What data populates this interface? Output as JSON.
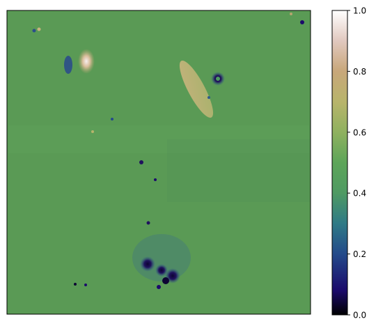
{
  "colorbar": {
    "colormap": "gist_earth",
    "min": 0.0,
    "max": 1.0,
    "ticks": [
      "0.0",
      "0.2",
      "0.4",
      "0.6",
      "0.8",
      "1.0"
    ]
  },
  "image": {
    "description_tag": "height-map",
    "background_color": "#5a9a55"
  }
}
